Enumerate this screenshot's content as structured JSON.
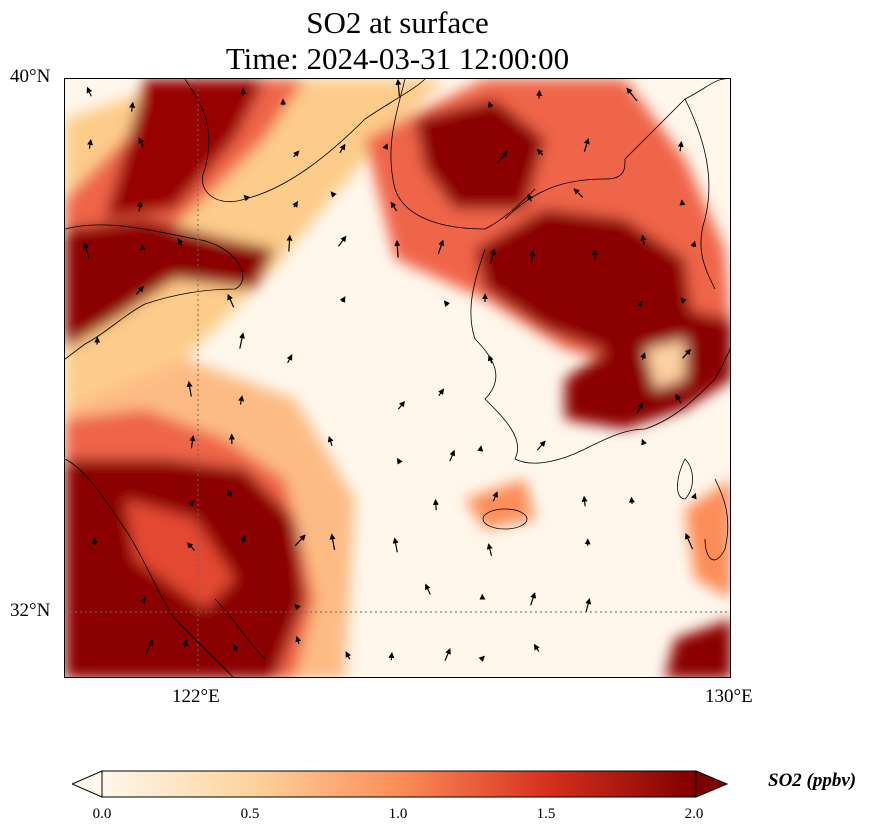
{
  "title": {
    "line1": "SO2 at surface",
    "line2": "Time: 2024-03-31 12:00:00"
  },
  "map": {
    "lat_labels": [
      "40°N",
      "32°N"
    ],
    "lon_labels": [
      "122°E",
      "130°E"
    ],
    "extent": {
      "lon_min": 120,
      "lon_max": 130,
      "lat_min": 31,
      "lat_max": 40
    },
    "gridlines": {
      "lons": [
        122
      ],
      "lats": [
        32
      ],
      "style": "dotted"
    },
    "field": "SO2 concentration",
    "wind_vectors": "black arrows"
  },
  "colorbar": {
    "label": "SO2 (ppbv)",
    "ticks": [
      "0.0",
      "0.5",
      "1.0",
      "1.5",
      "2.0"
    ],
    "tick_values": [
      0.0,
      0.5,
      1.0,
      1.5,
      2.0
    ],
    "range": [
      0.0,
      2.0
    ],
    "colormap": "OrRd",
    "colors": [
      "#fff7ec",
      "#fdd49e",
      "#fc8d59",
      "#d7301f",
      "#7f0000"
    ],
    "extend": "both"
  }
}
